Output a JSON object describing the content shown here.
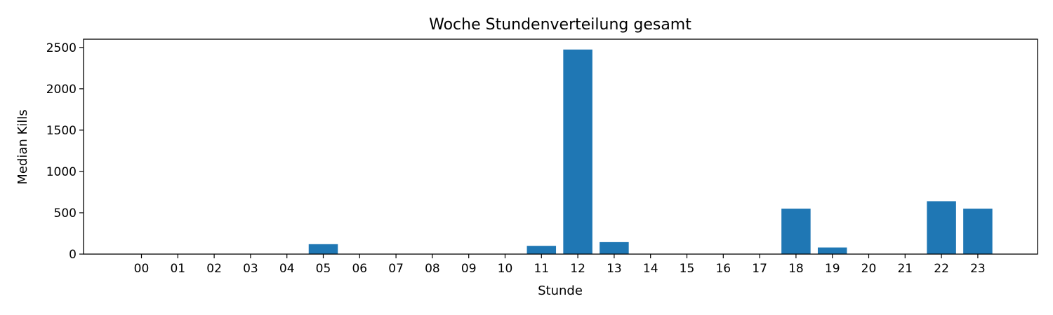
{
  "chart_data": {
    "type": "bar",
    "title": "Woche Stundenverteilung gesamt",
    "xlabel": "Stunde",
    "ylabel": "Median Kills",
    "categories": [
      "00",
      "01",
      "02",
      "03",
      "04",
      "05",
      "06",
      "07",
      "08",
      "09",
      "10",
      "11",
      "12",
      "13",
      "14",
      "15",
      "16",
      "17",
      "18",
      "19",
      "20",
      "21",
      "22",
      "23"
    ],
    "values": [
      0,
      0,
      0,
      0,
      0,
      120,
      0,
      0,
      0,
      0,
      0,
      100,
      2475,
      145,
      0,
      0,
      0,
      0,
      550,
      80,
      0,
      0,
      640,
      550
    ],
    "ylim": [
      0,
      2600
    ],
    "yticks": [
      0,
      500,
      1000,
      1500,
      2000,
      2500
    ],
    "grid": false,
    "bar_color": "#1f77b4"
  }
}
